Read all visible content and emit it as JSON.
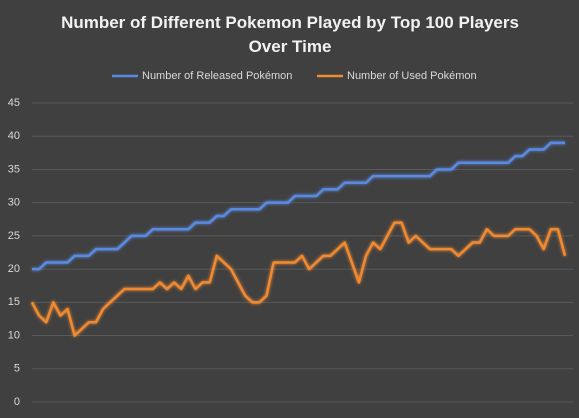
{
  "chart_data": {
    "type": "line",
    "title": [
      "Number of Different Pokemon Played by Top 100 Players",
      "Over Time"
    ],
    "categories": [
      null,
      null,
      null,
      null,
      null,
      null,
      null,
      null,
      null,
      null,
      null,
      null,
      null,
      null,
      null,
      null,
      null,
      null,
      null,
      null,
      null,
      null,
      null,
      null,
      null,
      null,
      null,
      null,
      null,
      null,
      null,
      null,
      null,
      null,
      null,
      null,
      null,
      null,
      null,
      null,
      null,
      null,
      null,
      null,
      null,
      null,
      null,
      null,
      null,
      null,
      null,
      null,
      null,
      null,
      null,
      null,
      null,
      null,
      null,
      null,
      null,
      null,
      null,
      null,
      null,
      null,
      null,
      null,
      null,
      null,
      null,
      null,
      null,
      null,
      null,
      null
    ],
    "series": [
      {
        "name": "Number of Released Pokémon",
        "color": "#5a8ae0",
        "values": [
          20,
          20,
          21,
          21,
          21,
          21,
          22,
          22,
          22,
          23,
          23,
          23,
          23,
          24,
          25,
          25,
          25,
          26,
          26,
          26,
          26,
          26,
          26,
          27,
          27,
          27,
          28,
          28,
          29,
          29,
          29,
          29,
          29,
          30,
          30,
          30,
          30,
          31,
          31,
          31,
          31,
          32,
          32,
          32,
          33,
          33,
          33,
          33,
          34,
          34,
          34,
          34,
          34,
          34,
          34,
          34,
          34,
          35,
          35,
          35,
          36,
          36,
          36,
          36,
          36,
          36,
          36,
          36,
          37,
          37,
          38,
          38,
          38,
          39,
          39,
          39
        ]
      },
      {
        "name": "Number of Used Pokémon",
        "color": "#f08a33",
        "values": [
          15,
          13,
          12,
          15,
          13,
          14,
          10,
          11,
          12,
          12,
          14,
          15,
          16,
          17,
          17,
          17,
          17,
          17,
          18,
          17,
          18,
          17,
          19,
          17,
          18,
          18,
          22,
          21,
          20,
          18,
          16,
          15,
          15,
          16,
          21,
          21,
          21,
          21,
          22,
          20,
          21,
          22,
          22,
          23,
          24,
          21,
          18,
          22,
          24,
          23,
          25,
          27,
          27,
          24,
          25,
          24,
          23,
          23,
          23,
          23,
          22,
          23,
          24,
          24,
          26,
          25,
          25,
          25,
          26,
          26,
          26,
          25,
          23,
          26,
          26,
          22
        ]
      }
    ],
    "ylim": [
      0,
      45
    ],
    "yticks": [
      0,
      5,
      10,
      15,
      20,
      25,
      30,
      35,
      40,
      45
    ],
    "grid": true,
    "legend": "top"
  }
}
